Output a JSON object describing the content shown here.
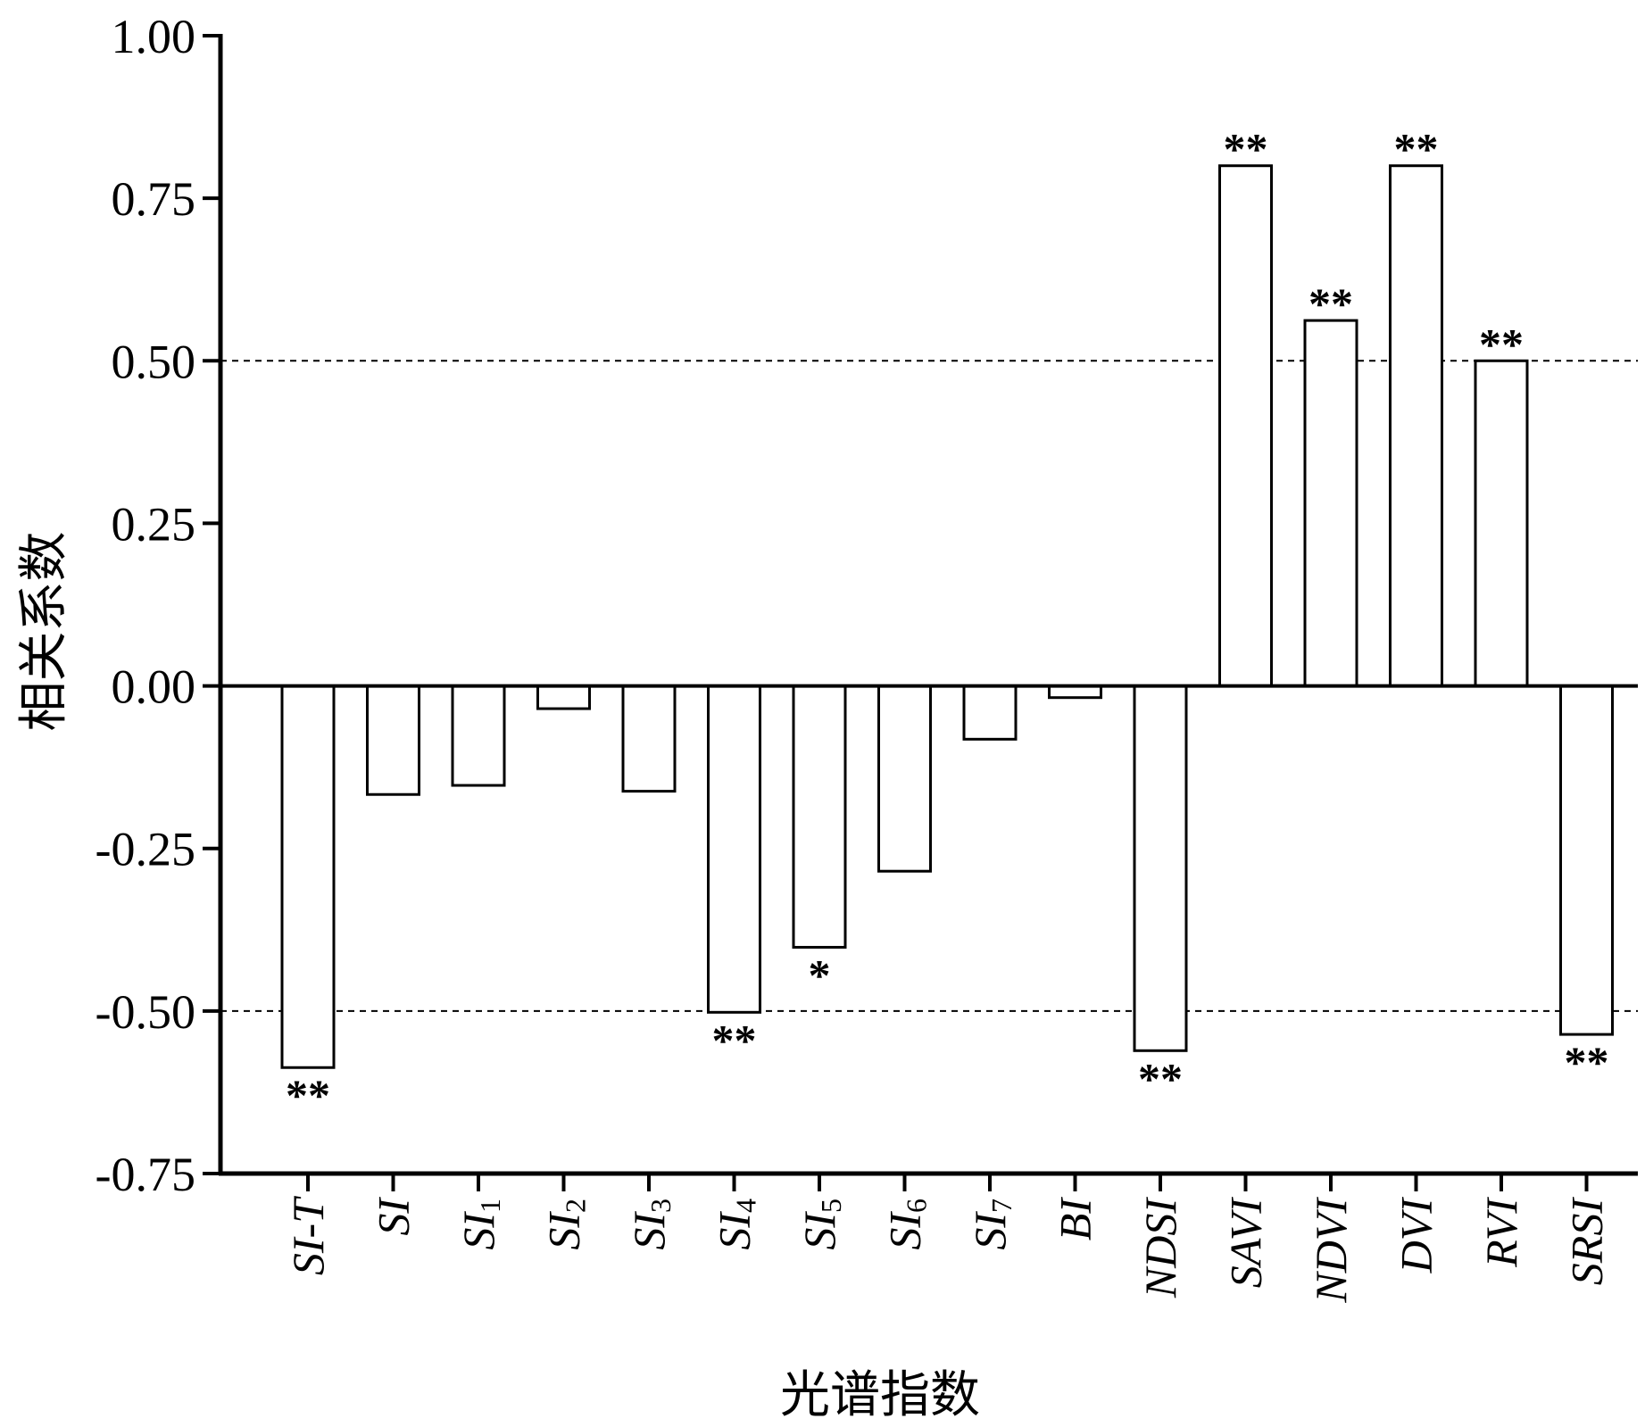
{
  "chart_data": {
    "type": "bar",
    "xlabel": "光谱指数",
    "ylabel": "相关系数",
    "ylim": [
      -0.75,
      1.0
    ],
    "yticks": [
      "1.00",
      "0.75",
      "0.50",
      "0.25",
      "0.00",
      "-0.25",
      "-0.50",
      "-0.75"
    ],
    "reference_lines": [
      0.5,
      -0.5
    ],
    "grid": false,
    "legend": "none",
    "categories": [
      {
        "base": "SI-T",
        "sub": ""
      },
      {
        "base": "SI",
        "sub": ""
      },
      {
        "base": "SI",
        "sub": "1"
      },
      {
        "base": "SI",
        "sub": "2"
      },
      {
        "base": "SI",
        "sub": "3"
      },
      {
        "base": "SI",
        "sub": "4"
      },
      {
        "base": "SI",
        "sub": "5"
      },
      {
        "base": "SI",
        "sub": "6"
      },
      {
        "base": "SI",
        "sub": "7"
      },
      {
        "base": "BI",
        "sub": ""
      },
      {
        "base": "NDSI",
        "sub": ""
      },
      {
        "base": "SAVI",
        "sub": ""
      },
      {
        "base": "NDVI",
        "sub": ""
      },
      {
        "base": "DVI",
        "sub": ""
      },
      {
        "base": "RVI",
        "sub": ""
      },
      {
        "base": "SRSI",
        "sub": ""
      }
    ],
    "values": [
      -0.587,
      -0.167,
      -0.153,
      -0.035,
      -0.162,
      -0.502,
      -0.402,
      -0.285,
      -0.082,
      -0.018,
      -0.561,
      0.8,
      0.562,
      0.8,
      0.5,
      -0.536
    ],
    "significance": [
      "**",
      "",
      "",
      "",
      "",
      "**",
      "*",
      "",
      "",
      "",
      "**",
      "**",
      "**",
      "**",
      "**",
      "**"
    ]
  },
  "colors": {
    "axis": "#000000",
    "bar_fill": "#ffffff",
    "bar_stroke": "#000000"
  }
}
